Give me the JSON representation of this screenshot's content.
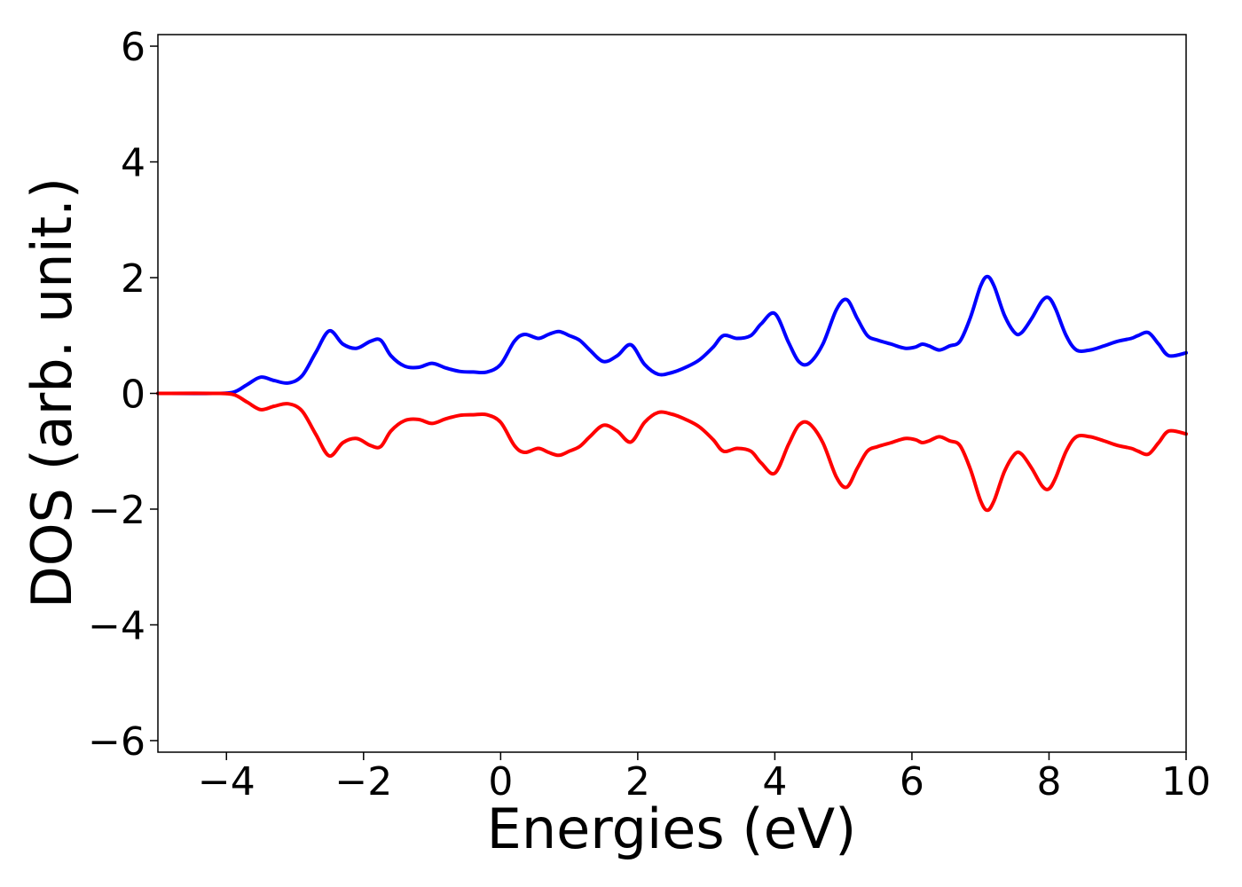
{
  "chart_data": {
    "type": "line",
    "title": "",
    "xlabel": "Energies (eV)",
    "ylabel": "DOS (arb. unit.)",
    "xlim": [
      -5,
      10
    ],
    "ylim": [
      -6.2,
      6.2
    ],
    "xticks": [
      -4,
      -2,
      0,
      2,
      4,
      6,
      8,
      10
    ],
    "yticks": [
      -6,
      -4,
      -2,
      0,
      2,
      4,
      6
    ],
    "xtick_labels": [
      "−4",
      "−2",
      "0",
      "2",
      "4",
      "6",
      "8",
      "10"
    ],
    "ytick_labels": [
      "−6",
      "−4",
      "−2",
      "0",
      "2",
      "4",
      "6"
    ],
    "grid": false,
    "legend": "none",
    "series": [
      {
        "color": "#0000ff",
        "x": [
          -5,
          -4.2,
          -3.9,
          -3.7,
          -3.5,
          -3.3,
          -3.1,
          -2.9,
          -2.7,
          -2.5,
          -2.3,
          -2.1,
          -1.9,
          -1.75,
          -1.6,
          -1.4,
          -1.2,
          -1.0,
          -0.8,
          -0.6,
          -0.4,
          -0.2,
          0.0,
          0.2,
          0.35,
          0.55,
          0.7,
          0.85,
          1.0,
          1.15,
          1.3,
          1.5,
          1.7,
          1.9,
          2.1,
          2.3,
          2.5,
          2.7,
          2.9,
          3.1,
          3.25,
          3.45,
          3.65,
          3.8,
          4.0,
          4.2,
          4.35,
          4.5,
          4.7,
          4.9,
          5.05,
          5.2,
          5.35,
          5.5,
          5.7,
          5.9,
          6.05,
          6.15,
          6.25,
          6.4,
          6.55,
          6.7,
          6.85,
          7.0,
          7.1,
          7.2,
          7.35,
          7.5,
          7.6,
          7.75,
          7.9,
          8.0,
          8.1,
          8.25,
          8.4,
          8.6,
          8.8,
          9.0,
          9.2,
          9.3,
          9.45,
          9.6,
          9.75,
          10.0
        ],
        "y": [
          0.0,
          0.0,
          0.02,
          0.15,
          0.28,
          0.22,
          0.18,
          0.3,
          0.7,
          1.08,
          0.85,
          0.78,
          0.9,
          0.92,
          0.65,
          0.47,
          0.45,
          0.52,
          0.44,
          0.38,
          0.37,
          0.37,
          0.5,
          0.9,
          1.02,
          0.95,
          1.02,
          1.07,
          1.0,
          0.92,
          0.75,
          0.55,
          0.65,
          0.84,
          0.5,
          0.33,
          0.36,
          0.45,
          0.58,
          0.8,
          1.0,
          0.95,
          1.0,
          1.2,
          1.38,
          0.88,
          0.55,
          0.52,
          0.85,
          1.45,
          1.62,
          1.3,
          1.0,
          0.92,
          0.85,
          0.78,
          0.8,
          0.85,
          0.82,
          0.75,
          0.82,
          0.9,
          1.3,
          1.85,
          2.02,
          1.85,
          1.35,
          1.05,
          1.05,
          1.3,
          1.6,
          1.65,
          1.45,
          1.0,
          0.75,
          0.75,
          0.82,
          0.9,
          0.95,
          1.0,
          1.05,
          0.85,
          0.65,
          0.7
        ]
      },
      {
        "color": "#ff0000",
        "x": [
          -5,
          -4.2,
          -3.9,
          -3.7,
          -3.5,
          -3.3,
          -3.1,
          -2.9,
          -2.7,
          -2.5,
          -2.3,
          -2.1,
          -1.9,
          -1.75,
          -1.6,
          -1.4,
          -1.2,
          -1.0,
          -0.8,
          -0.6,
          -0.4,
          -0.2,
          0.0,
          0.2,
          0.35,
          0.55,
          0.7,
          0.85,
          1.0,
          1.15,
          1.3,
          1.5,
          1.7,
          1.9,
          2.1,
          2.3,
          2.5,
          2.7,
          2.9,
          3.1,
          3.25,
          3.45,
          3.65,
          3.8,
          4.0,
          4.2,
          4.35,
          4.5,
          4.7,
          4.9,
          5.05,
          5.2,
          5.35,
          5.5,
          5.7,
          5.9,
          6.05,
          6.15,
          6.25,
          6.4,
          6.55,
          6.7,
          6.85,
          7.0,
          7.1,
          7.2,
          7.35,
          7.5,
          7.6,
          7.75,
          7.9,
          8.0,
          8.1,
          8.25,
          8.4,
          8.6,
          8.8,
          9.0,
          9.2,
          9.3,
          9.45,
          9.6,
          9.75,
          10.0
        ],
        "y": [
          0.0,
          0.0,
          -0.02,
          -0.15,
          -0.28,
          -0.22,
          -0.18,
          -0.3,
          -0.7,
          -1.08,
          -0.85,
          -0.78,
          -0.9,
          -0.92,
          -0.65,
          -0.47,
          -0.45,
          -0.52,
          -0.44,
          -0.38,
          -0.37,
          -0.37,
          -0.5,
          -0.9,
          -1.02,
          -0.95,
          -1.02,
          -1.07,
          -1.0,
          -0.92,
          -0.75,
          -0.55,
          -0.65,
          -0.84,
          -0.5,
          -0.33,
          -0.36,
          -0.45,
          -0.58,
          -0.8,
          -1.0,
          -0.95,
          -1.0,
          -1.2,
          -1.38,
          -0.88,
          -0.55,
          -0.52,
          -0.85,
          -1.45,
          -1.62,
          -1.3,
          -1.0,
          -0.92,
          -0.85,
          -0.78,
          -0.8,
          -0.85,
          -0.82,
          -0.75,
          -0.82,
          -0.9,
          -1.3,
          -1.85,
          -2.02,
          -1.85,
          -1.35,
          -1.05,
          -1.05,
          -1.3,
          -1.6,
          -1.65,
          -1.45,
          -1.0,
          -0.75,
          -0.75,
          -0.82,
          -0.9,
          -0.95,
          -1.0,
          -1.05,
          -0.85,
          -0.65,
          -0.7
        ]
      }
    ]
  }
}
